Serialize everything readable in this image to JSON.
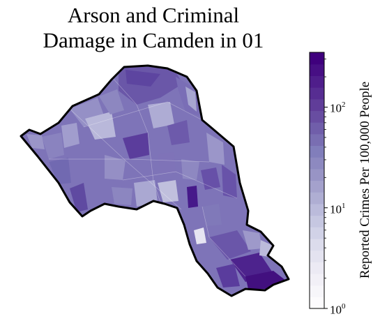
{
  "map": {
    "title_line1": "Arson and Criminal",
    "title_line2": "Damage in Camden in 01",
    "borough": "Camden",
    "fill_palette": [
      "#f2f0f7",
      "#dadaeb",
      "#bcbddc",
      "#9e9ac8",
      "#807dba",
      "#6a51a3",
      "#54278f",
      "#3f007d"
    ],
    "boundary_color": "#000000"
  },
  "colorbar": {
    "label": "Reported Crimes Per 100,000 People",
    "scale": "log",
    "range": [
      1,
      350
    ],
    "ticks": [
      {
        "base": "10",
        "exp": "0",
        "value": 1
      },
      {
        "base": "10",
        "exp": "1",
        "value": 10
      },
      {
        "base": "10",
        "exp": "2",
        "value": 100
      }
    ],
    "cmap": "Purples"
  }
}
